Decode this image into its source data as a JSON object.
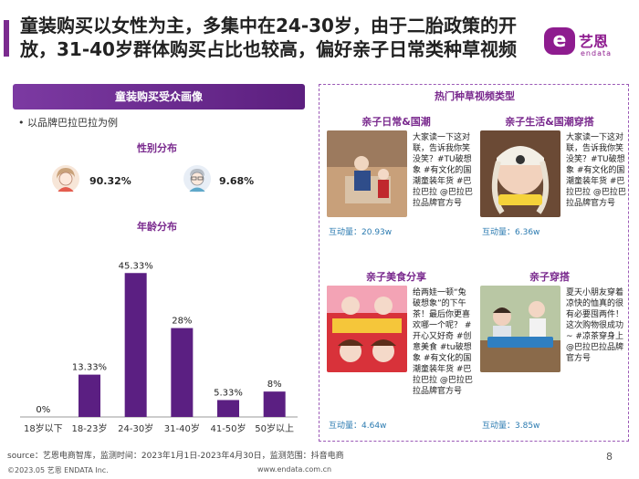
{
  "header": {
    "title_line1": "童装购买以女性为主，多集中在24-30岁，由于二胎政策的开",
    "title_line2": "放，31-40岁群体购买占比也较高，偏好亲子日常类种草视频",
    "logo_mark": "e",
    "logo_cn": "艺恩",
    "logo_en": "endata"
  },
  "left_panel": {
    "header": "童装购买受众画像",
    "bullet": "•",
    "example": "以品牌巴拉巴拉为例",
    "gender_title": "性别分布",
    "female_share": "90.32%",
    "male_share": "9.68%",
    "age_title": "年龄分布"
  },
  "chart_data": {
    "type": "bar",
    "categories": [
      "18岁以下",
      "18-23岁",
      "24-30岁",
      "31-40岁",
      "41-50岁",
      "50岁以上"
    ],
    "values": [
      0,
      13.33,
      45.33,
      28,
      5.33,
      8
    ],
    "value_labels": [
      "0%",
      "13.33%",
      "45.33%",
      "28%",
      "5.33%",
      "8%"
    ],
    "title": "年龄分布",
    "bar_color": "#5b1f82",
    "ylim": [
      0,
      50
    ]
  },
  "right_panel": {
    "title": "热门种草视频类型",
    "cards": [
      {
        "title": "亲子日常&国潮",
        "desc": "大家读一下这对联，告诉我你笑没笑？#TU破想象 #有文化的国潮童装年货 #巴拉巴拉 @巴拉巴拉品牌官方号",
        "metric": "互动量：20.93w"
      },
      {
        "title": "亲子生活&国潮穿搭",
        "desc": "大家读一下这对联，告诉我你笑没笑？#TU破想象 #有文化的国潮童装年货 #巴拉巴拉 @巴拉巴拉品牌官方号",
        "metric": "互动量：6.36w"
      },
      {
        "title": "亲子美食分享",
        "desc": "给两娃一顿“兔破想象”的下午茶！最后你更喜欢哪一个呢？ #开心又好奇 #创意美食 #tu破想象 #有文化的国潮童装年货 #巴拉巴拉 @巴拉巴拉品牌官方号",
        "metric": "互动量：4.64w"
      },
      {
        "title": "亲子穿搭",
        "desc": "夏天小朋友穿着凉快的恤真的很有必要囤两件！这次购物很成功~ #凉茶穿身上 @巴拉巴拉品牌官方号",
        "metric": "互动量：3.85w"
      }
    ]
  },
  "footer": {
    "source": "source：艺恩电商智库，监测时间：2023年1月1日-2023年4月30日，监测范围：抖音电商",
    "copyright": "©2023.05 艺恩 ENDATA Inc.",
    "url": "www.endata.com.cn",
    "page": "8"
  }
}
